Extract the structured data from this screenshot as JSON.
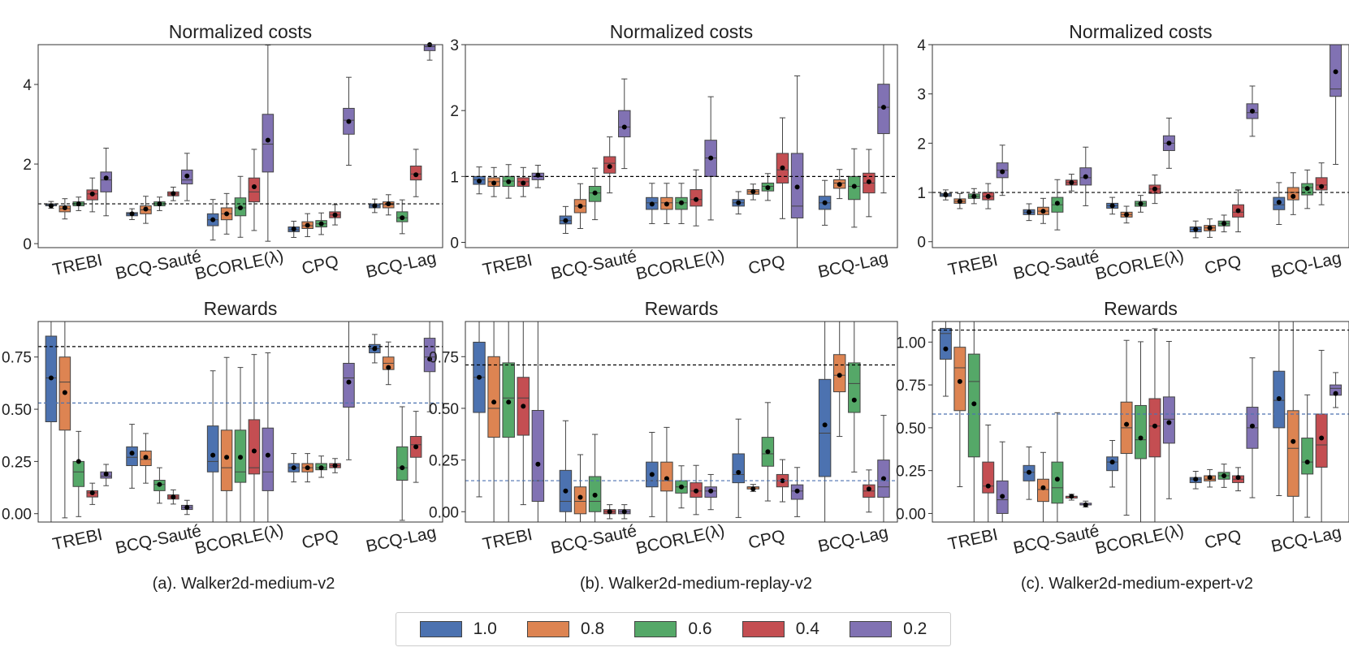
{
  "colors": {
    "1.0": "#4c72b0",
    "0.8": "#dd8452",
    "0.6": "#55a868",
    "0.4": "#c44e52",
    "0.2": "#8172b3"
  },
  "legend": {
    "items": [
      {
        "label": "1.0",
        "color": "#4c72b0"
      },
      {
        "label": "0.8",
        "color": "#dd8452"
      },
      {
        "label": "0.6",
        "color": "#55a868"
      },
      {
        "label": "0.4",
        "color": "#c44e52"
      },
      {
        "label": "0.2",
        "color": "#8172b3"
      }
    ]
  },
  "captions": [
    "(a). Walker2d-medium-v2",
    "(b). Walker2d-medium-replay-v2",
    "(c). Walker2d-medium-expert-v2"
  ],
  "chart_data": [
    {
      "id": "a-costs",
      "type": "box",
      "title": "Normalized costs",
      "categories": [
        "TREBI",
        "BCQ-Sauté",
        "BCORLE(λ)",
        "CPQ",
        "BCQ-Lag"
      ],
      "series": [
        "1.0",
        "0.8",
        "0.6",
        "0.4",
        "0.2"
      ],
      "ylim": [
        -0.1,
        5.0
      ],
      "yticks": [
        0,
        2,
        4
      ],
      "tick_decimals": 0,
      "reference_lines": [
        {
          "value": 1.0,
          "color": "#000000"
        }
      ],
      "boxes": [
        [
          [
            0.95,
            0.98,
            1.0,
            0.95
          ],
          [
            0.8,
            0.88,
            0.95,
            0.9
          ],
          [
            0.95,
            1.0,
            1.05,
            1.0
          ],
          [
            1.1,
            1.25,
            1.35,
            1.25
          ],
          [
            1.3,
            1.6,
            1.8,
            1.65
          ]
        ],
        [
          [
            0.7,
            0.75,
            0.78,
            0.75
          ],
          [
            0.75,
            0.85,
            0.95,
            0.87
          ],
          [
            0.95,
            1.0,
            1.05,
            1.0
          ],
          [
            1.2,
            1.25,
            1.3,
            1.26
          ],
          [
            1.5,
            1.6,
            1.85,
            1.7
          ]
        ],
        [
          [
            0.45,
            0.6,
            0.75,
            0.6
          ],
          [
            0.6,
            0.75,
            0.9,
            0.75
          ],
          [
            0.7,
            0.9,
            1.15,
            0.9
          ],
          [
            1.05,
            1.3,
            1.65,
            1.43
          ],
          [
            1.8,
            2.5,
            3.25,
            2.6
          ]
        ],
        [
          [
            0.3,
            0.35,
            0.42,
            0.37
          ],
          [
            0.38,
            0.45,
            0.55,
            0.46
          ],
          [
            0.42,
            0.5,
            0.58,
            0.5
          ],
          [
            0.65,
            0.72,
            0.8,
            0.72
          ],
          [
            2.75,
            3.1,
            3.4,
            3.07
          ]
        ],
        [
          [
            0.9,
            0.95,
            1.0,
            0.95
          ],
          [
            0.9,
            0.98,
            1.05,
            1.0
          ],
          [
            0.55,
            0.65,
            0.8,
            0.65
          ],
          [
            1.6,
            1.75,
            1.95,
            1.73
          ],
          [
            4.85,
            4.95,
            5.05,
            5.0
          ]
        ]
      ]
    },
    {
      "id": "b-costs",
      "type": "box",
      "title": "Normalized costs",
      "categories": [
        "TREBI",
        "BCQ-Sauté",
        "BCORLE(λ)",
        "CPQ",
        "BCQ-Lag"
      ],
      "series": [
        "1.0",
        "0.8",
        "0.6",
        "0.4",
        "0.2"
      ],
      "ylim": [
        -0.08,
        3.0
      ],
      "yticks": [
        0,
        1,
        2,
        3
      ],
      "tick_decimals": 0,
      "reference_lines": [
        {
          "value": 1.0,
          "color": "#000000"
        }
      ],
      "boxes": [
        [
          [
            0.88,
            0.95,
            1.0,
            0.93
          ],
          [
            0.85,
            0.92,
            0.98,
            0.9
          ],
          [
            0.85,
            0.93,
            1.0,
            0.92
          ],
          [
            0.85,
            0.92,
            0.98,
            0.9
          ],
          [
            0.95,
            1.0,
            1.05,
            1.02
          ]
        ],
        [
          [
            0.28,
            0.33,
            0.4,
            0.33
          ],
          [
            0.45,
            0.55,
            0.65,
            0.55
          ],
          [
            0.62,
            0.75,
            0.85,
            0.75
          ],
          [
            1.05,
            1.2,
            1.3,
            1.15
          ],
          [
            1.6,
            1.75,
            2.0,
            1.75
          ]
        ],
        [
          [
            0.5,
            0.6,
            0.68,
            0.58
          ],
          [
            0.5,
            0.6,
            0.68,
            0.58
          ],
          [
            0.5,
            0.6,
            0.68,
            0.6
          ],
          [
            0.55,
            0.65,
            0.8,
            0.65
          ],
          [
            1.0,
            1.28,
            1.55,
            1.28
          ]
        ],
        [
          [
            0.55,
            0.6,
            0.65,
            0.6
          ],
          [
            0.73,
            0.77,
            0.8,
            0.77
          ],
          [
            0.78,
            0.85,
            0.9,
            0.83
          ],
          [
            0.9,
            1.1,
            1.35,
            1.13
          ],
          [
            0.37,
            0.55,
            1.35,
            0.84
          ]
        ],
        [
          [
            0.5,
            0.6,
            0.7,
            0.6
          ],
          [
            0.82,
            0.9,
            0.95,
            0.88
          ],
          [
            0.65,
            0.85,
            1.0,
            0.85
          ],
          [
            0.75,
            0.9,
            1.05,
            0.92
          ],
          [
            1.65,
            2.05,
            2.4,
            2.05
          ]
        ]
      ]
    },
    {
      "id": "c-costs",
      "type": "box",
      "title": "Normalized costs",
      "categories": [
        "TREBI",
        "BCQ-Sauté",
        "BCORLE(λ)",
        "CPQ",
        "BCQ-Lag"
      ],
      "series": [
        "1.0",
        "0.8",
        "0.6",
        "0.4",
        "0.2"
      ],
      "ylim": [
        -0.12,
        4.0
      ],
      "yticks": [
        0,
        1,
        2,
        3,
        4
      ],
      "tick_decimals": 0,
      "reference_lines": [
        {
          "value": 1.0,
          "color": "#000000"
        }
      ],
      "boxes": [
        [
          [
            0.92,
            0.95,
            0.98,
            0.95
          ],
          [
            0.78,
            0.82,
            0.87,
            0.82
          ],
          [
            0.88,
            0.92,
            0.97,
            0.92
          ],
          [
            0.85,
            0.92,
            1.0,
            0.92
          ],
          [
            1.3,
            1.45,
            1.6,
            1.42
          ]
        ],
        [
          [
            0.55,
            0.6,
            0.65,
            0.6
          ],
          [
            0.55,
            0.62,
            0.7,
            0.62
          ],
          [
            0.6,
            0.75,
            0.9,
            0.78
          ],
          [
            1.15,
            1.2,
            1.25,
            1.2
          ],
          [
            1.15,
            1.3,
            1.5,
            1.32
          ]
        ],
        [
          [
            0.68,
            0.73,
            0.78,
            0.73
          ],
          [
            0.5,
            0.55,
            0.6,
            0.55
          ],
          [
            0.72,
            0.77,
            0.82,
            0.77
          ],
          [
            0.98,
            1.07,
            1.15,
            1.07
          ],
          [
            1.85,
            2.0,
            2.15,
            2.0
          ]
        ],
        [
          [
            0.2,
            0.25,
            0.3,
            0.25
          ],
          [
            0.22,
            0.28,
            0.33,
            0.28
          ],
          [
            0.32,
            0.37,
            0.42,
            0.37
          ],
          [
            0.5,
            0.6,
            0.75,
            0.63
          ],
          [
            2.5,
            2.62,
            2.8,
            2.65
          ]
        ],
        [
          [
            0.65,
            0.75,
            0.9,
            0.8
          ],
          [
            0.85,
            1.0,
            1.1,
            0.92
          ],
          [
            0.95,
            1.1,
            1.18,
            1.08
          ],
          [
            1.05,
            1.15,
            1.3,
            1.12
          ],
          [
            2.95,
            3.1,
            4.1,
            3.45
          ]
        ]
      ]
    },
    {
      "id": "a-rewards",
      "type": "box",
      "title": "Rewards",
      "categories": [
        "TREBI",
        "BCQ-Sauté",
        "BCORLE(λ)",
        "CPQ",
        "BCQ-Lag"
      ],
      "series": [
        "1.0",
        "0.8",
        "0.6",
        "0.4",
        "0.2"
      ],
      "ylim": [
        -0.04,
        0.92
      ],
      "yticks": [
        0.0,
        0.25,
        0.5,
        0.75
      ],
      "tick_decimals": 2,
      "reference_lines": [
        {
          "value": 0.8,
          "color": "#000000"
        },
        {
          "value": 0.53,
          "color": "#4c72b0"
        }
      ],
      "boxes": [
        [
          [
            0.44,
            0.65,
            0.85,
            0.65
          ],
          [
            0.4,
            0.63,
            0.75,
            0.58
          ],
          [
            0.13,
            0.2,
            0.25,
            0.25
          ],
          [
            0.08,
            0.1,
            0.11,
            0.1
          ],
          [
            0.17,
            0.18,
            0.2,
            0.19
          ]
        ],
        [
          [
            0.23,
            0.27,
            0.32,
            0.29
          ],
          [
            0.23,
            0.26,
            0.3,
            0.27
          ],
          [
            0.11,
            0.14,
            0.16,
            0.14
          ],
          [
            0.07,
            0.08,
            0.09,
            0.08
          ],
          [
            0.02,
            0.03,
            0.04,
            0.03
          ]
        ],
        [
          [
            0.2,
            0.25,
            0.42,
            0.28
          ],
          [
            0.11,
            0.22,
            0.4,
            0.27
          ],
          [
            0.15,
            0.2,
            0.4,
            0.27
          ],
          [
            0.19,
            0.22,
            0.45,
            0.3
          ],
          [
            0.11,
            0.2,
            0.41,
            0.28
          ]
        ],
        [
          [
            0.2,
            0.22,
            0.24,
            0.22
          ],
          [
            0.2,
            0.22,
            0.24,
            0.22
          ],
          [
            0.21,
            0.22,
            0.24,
            0.22
          ],
          [
            0.22,
            0.23,
            0.24,
            0.23
          ],
          [
            0.51,
            0.65,
            0.72,
            0.63
          ]
        ],
        [
          [
            0.77,
            0.79,
            0.81,
            0.79
          ],
          [
            0.69,
            0.72,
            0.75,
            0.7
          ],
          [
            0.16,
            0.22,
            0.32,
            0.22
          ],
          [
            0.27,
            0.33,
            0.37,
            0.32
          ],
          [
            0.68,
            0.75,
            0.84,
            0.74
          ]
        ]
      ]
    },
    {
      "id": "b-rewards",
      "type": "box",
      "title": "Rewards",
      "categories": [
        "TREBI",
        "BCQ-Sauté",
        "BCORLE(λ)",
        "CPQ",
        "BCQ-Lag"
      ],
      "series": [
        "1.0",
        "0.8",
        "0.6",
        "0.4",
        "0.2"
      ],
      "ylim": [
        -0.05,
        0.92
      ],
      "yticks": [
        0.0,
        0.25,
        0.5,
        0.75
      ],
      "tick_decimals": 2,
      "reference_lines": [
        {
          "value": 0.71,
          "color": "#000000"
        },
        {
          "value": 0.15,
          "color": "#4c72b0"
        }
      ],
      "boxes": [
        [
          [
            0.48,
            0.65,
            0.82,
            0.65
          ],
          [
            0.36,
            0.5,
            0.75,
            0.53
          ],
          [
            0.36,
            0.55,
            0.72,
            0.53
          ],
          [
            0.37,
            0.55,
            0.65,
            0.51
          ],
          [
            0.05,
            0.15,
            0.49,
            0.23
          ]
        ],
        [
          [
            0.0,
            0.05,
            0.2,
            0.1
          ],
          [
            -0.01,
            0.05,
            0.12,
            0.07
          ],
          [
            0.0,
            0.05,
            0.17,
            0.08
          ],
          [
            -0.01,
            0.0,
            0.01,
            0.0
          ],
          [
            -0.01,
            0.0,
            0.01,
            0.0
          ]
        ],
        [
          [
            0.12,
            0.15,
            0.24,
            0.18
          ],
          [
            0.1,
            0.15,
            0.24,
            0.16
          ],
          [
            0.09,
            0.12,
            0.15,
            0.12
          ],
          [
            0.07,
            0.1,
            0.14,
            0.1
          ],
          [
            0.07,
            0.1,
            0.12,
            0.1
          ]
        ],
        [
          [
            0.14,
            0.18,
            0.28,
            0.19
          ],
          [
            0.11,
            0.12,
            0.12,
            0.11
          ],
          [
            0.22,
            0.28,
            0.36,
            0.29
          ],
          [
            0.12,
            0.15,
            0.18,
            0.15
          ],
          [
            0.06,
            0.1,
            0.13,
            0.1
          ]
        ],
        [
          [
            0.17,
            0.38,
            0.64,
            0.42
          ],
          [
            0.58,
            0.66,
            0.76,
            0.66
          ],
          [
            0.48,
            0.62,
            0.72,
            0.54
          ],
          [
            0.07,
            0.1,
            0.13,
            0.11
          ],
          [
            0.07,
            0.12,
            0.25,
            0.16
          ]
        ]
      ]
    },
    {
      "id": "c-rewards",
      "type": "box",
      "title": "Rewards",
      "categories": [
        "TREBI",
        "BCQ-Sauté",
        "BCORLE(λ)",
        "CPQ",
        "BCQ-Lag"
      ],
      "series": [
        "1.0",
        "0.8",
        "0.6",
        "0.4",
        "0.2"
      ],
      "ylim": [
        -0.05,
        1.12
      ],
      "yticks": [
        0.0,
        0.25,
        0.5,
        0.75,
        1.0
      ],
      "tick_decimals": 2,
      "reference_lines": [
        {
          "value": 1.07,
          "color": "#000000"
        },
        {
          "value": 0.58,
          "color": "#4c72b0"
        }
      ],
      "boxes": [
        [
          [
            0.9,
            1.05,
            1.08,
            0.96
          ],
          [
            0.6,
            0.85,
            0.97,
            0.77
          ],
          [
            0.33,
            0.77,
            0.93,
            0.64
          ],
          [
            0.12,
            0.16,
            0.3,
            0.16
          ],
          [
            0.0,
            0.08,
            0.19,
            0.1
          ]
        ],
        [
          [
            0.19,
            0.24,
            0.28,
            0.24
          ],
          [
            0.07,
            0.14,
            0.2,
            0.15
          ],
          [
            0.06,
            0.15,
            0.3,
            0.2
          ],
          [
            0.09,
            0.1,
            0.1,
            0.1
          ],
          [
            0.05,
            0.05,
            0.06,
            0.05
          ]
        ],
        [
          [
            0.25,
            0.3,
            0.33,
            0.3
          ],
          [
            0.35,
            0.5,
            0.65,
            0.52
          ],
          [
            0.32,
            0.43,
            0.63,
            0.44
          ],
          [
            0.33,
            0.51,
            0.67,
            0.51
          ],
          [
            0.41,
            0.55,
            0.68,
            0.53
          ]
        ],
        [
          [
            0.18,
            0.2,
            0.21,
            0.2
          ],
          [
            0.19,
            0.2,
            0.22,
            0.21
          ],
          [
            0.2,
            0.22,
            0.24,
            0.22
          ],
          [
            0.18,
            0.2,
            0.22,
            0.21
          ],
          [
            0.38,
            0.5,
            0.62,
            0.51
          ]
        ],
        [
          [
            0.5,
            0.66,
            0.83,
            0.67
          ],
          [
            0.1,
            0.38,
            0.6,
            0.42
          ],
          [
            0.23,
            0.3,
            0.44,
            0.3
          ],
          [
            0.27,
            0.4,
            0.58,
            0.44
          ],
          [
            0.69,
            0.73,
            0.75,
            0.7
          ]
        ]
      ]
    }
  ]
}
